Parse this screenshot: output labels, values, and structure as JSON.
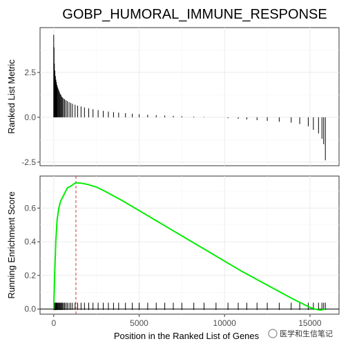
{
  "chart_data": [
    {
      "type": "bar",
      "title": "GOBP_HUMORAL_IMMUNE_RESPONSE",
      "ylabel": "Ranked List Metric",
      "xlabel": "",
      "xlim": [
        -800,
        16700
      ],
      "ylim": [
        -2.7,
        5.0
      ],
      "yticks": [
        2.5,
        0.0,
        -2.5
      ],
      "ytick_labels": [
        "2.5",
        "0.0",
        "-2.5"
      ],
      "grid": true,
      "hits_with_metric": [
        [
          0,
          4.6
        ],
        [
          20,
          3.9
        ],
        [
          40,
          3.0
        ],
        [
          70,
          2.6
        ],
        [
          100,
          2.3
        ],
        [
          130,
          2.1
        ],
        [
          160,
          1.95
        ],
        [
          190,
          1.8
        ],
        [
          220,
          1.7
        ],
        [
          260,
          1.6
        ],
        [
          300,
          1.5
        ],
        [
          340,
          1.4
        ],
        [
          380,
          1.3
        ],
        [
          420,
          1.25
        ],
        [
          470,
          1.15
        ],
        [
          520,
          1.1
        ],
        [
          580,
          1.05
        ],
        [
          640,
          1.0
        ],
        [
          720,
          0.95
        ],
        [
          800,
          0.9
        ],
        [
          900,
          0.85
        ],
        [
          1000,
          0.8
        ],
        [
          1100,
          0.75
        ],
        [
          1250,
          0.7
        ],
        [
          1400,
          0.65
        ],
        [
          1600,
          0.6
        ],
        [
          1800,
          0.55
        ],
        [
          2050,
          0.5
        ],
        [
          2300,
          0.45
        ],
        [
          2600,
          0.4
        ],
        [
          2900,
          0.36
        ],
        [
          3200,
          0.32
        ],
        [
          3500,
          0.29
        ],
        [
          3800,
          0.26
        ],
        [
          4200,
          0.23
        ],
        [
          4600,
          0.2
        ],
        [
          5000,
          0.17
        ],
        [
          5500,
          0.14
        ],
        [
          6000,
          0.12
        ],
        [
          6500,
          0.1
        ],
        [
          7000,
          0.08
        ],
        [
          7500,
          0.06
        ],
        [
          8200,
          0.04
        ],
        [
          8800,
          0.02
        ],
        [
          9500,
          0.0
        ],
        [
          10200,
          -0.05
        ],
        [
          10800,
          -0.08
        ],
        [
          11300,
          -0.12
        ],
        [
          11900,
          -0.16
        ],
        [
          12500,
          -0.2
        ],
        [
          13200,
          -0.25
        ],
        [
          13900,
          -0.3
        ],
        [
          14400,
          -0.38
        ],
        [
          14900,
          -0.5
        ],
        [
          15200,
          -0.7
        ],
        [
          15500,
          -0.9
        ],
        [
          15700,
          -1.2
        ],
        [
          15800,
          -1.5
        ],
        [
          15900,
          -2.4
        ]
      ]
    },
    {
      "type": "line",
      "xlabel": "Position in the Ranked List of Genes",
      "ylabel": "Running Enrichment Score",
      "xlim": [
        -800,
        16700
      ],
      "ylim": [
        -0.03,
        0.79
      ],
      "xticks": [
        0,
        5000,
        10000,
        15000
      ],
      "xtick_labels": [
        "0",
        "5000",
        "10000",
        "15000"
      ],
      "yticks": [
        0.0,
        0.2,
        0.4,
        0.6
      ],
      "ytick_labels": [
        "0.0",
        "0.2",
        "0.4",
        "0.6"
      ],
      "grid": true,
      "series": [
        {
          "color": "#00ee00",
          "x": [
            0,
            60,
            120,
            200,
            300,
            400,
            500,
            650,
            800,
            1000,
            1200,
            1300,
            1600,
            2000,
            2500,
            3000,
            4000,
            5000,
            6000,
            7000,
            8000,
            9000,
            10000,
            11000,
            12000,
            13000,
            14000,
            14500,
            15000,
            15300,
            15600,
            15900
          ],
          "y": [
            0.0,
            0.22,
            0.4,
            0.53,
            0.6,
            0.64,
            0.66,
            0.69,
            0.72,
            0.73,
            0.745,
            0.75,
            0.748,
            0.74,
            0.725,
            0.7,
            0.645,
            0.585,
            0.525,
            0.465,
            0.405,
            0.345,
            0.285,
            0.225,
            0.17,
            0.115,
            0.06,
            0.035,
            0.01,
            0.0,
            -0.006,
            0.0
          ]
        }
      ],
      "vline_x": 1300,
      "vline_color": "#cc3333",
      "hline_y": 0.0,
      "hit_positions": [
        0,
        20,
        40,
        60,
        80,
        100,
        130,
        160,
        190,
        220,
        260,
        300,
        340,
        380,
        420,
        470,
        520,
        580,
        640,
        720,
        800,
        900,
        1000,
        1100,
        1250,
        1400,
        1600,
        1800,
        2050,
        2300,
        2600,
        2900,
        3200,
        3500,
        3800,
        4200,
        4600,
        5000,
        5500,
        6000,
        6500,
        7000,
        7500,
        8200,
        8800,
        9500,
        10200,
        10800,
        11300,
        11900,
        12500,
        13200,
        13900,
        14400,
        14900,
        15200,
        15500,
        15700,
        15800,
        15900
      ]
    }
  ],
  "watermark": "医学和生信笔记"
}
